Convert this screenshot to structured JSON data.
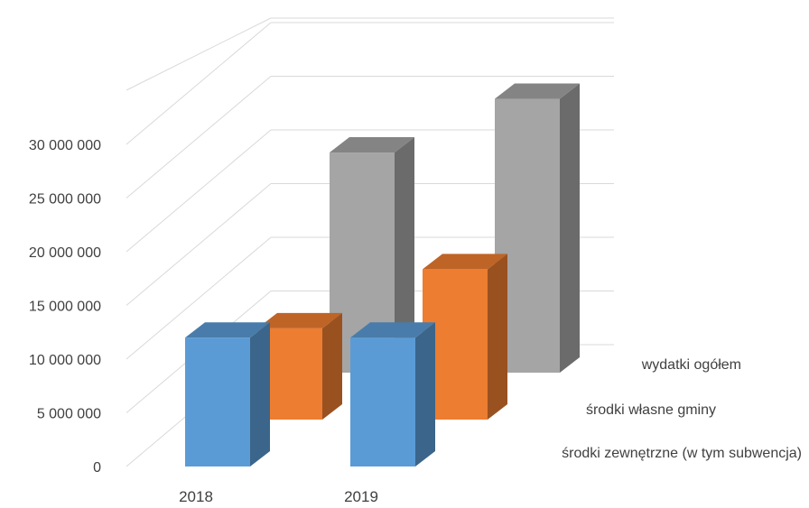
{
  "chart_data": {
    "type": "bar",
    "variant": "3d-column",
    "title": "",
    "categories": [
      "2018",
      "2019"
    ],
    "series": [
      {
        "name": "środki zewnętrzne (w tym subwencja)",
        "color": "#5b9bd5",
        "values": [
          12000000,
          12000000
        ]
      },
      {
        "name": "środki własne gminy",
        "color": "#ed7d31",
        "values": [
          8500000,
          14000000
        ]
      },
      {
        "name": "wydatki ogółem",
        "color": "#a5a5a5",
        "values": [
          20500000,
          25500000
        ]
      }
    ],
    "ylim": [
      0,
      30000000
    ],
    "ytick_values": [
      0,
      5000000,
      10000000,
      15000000,
      20000000,
      25000000,
      30000000
    ],
    "yticks": [
      "0",
      "5 000 000",
      "10 000 000",
      "15 000 000",
      "20 000 000",
      "25 000 000",
      "30 000 000"
    ],
    "grid": true,
    "legend": "series names along depth axis, right side"
  }
}
